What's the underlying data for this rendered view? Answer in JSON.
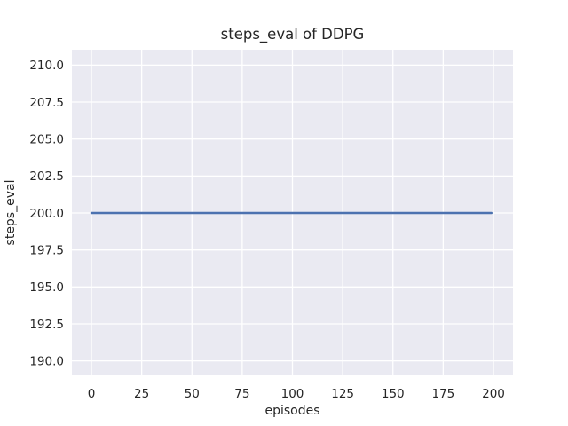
{
  "chart_data": {
    "type": "line",
    "title": "steps_eval of DDPG",
    "xlabel": "episodes",
    "ylabel": "steps_eval",
    "x_tick_values": [
      0,
      25,
      50,
      75,
      100,
      125,
      150,
      175,
      200
    ],
    "x_tick_labels": [
      "0",
      "25",
      "50",
      "75",
      "100",
      "125",
      "150",
      "175",
      "200"
    ],
    "y_tick_values": [
      190.0,
      192.5,
      195.0,
      197.5,
      200.0,
      202.5,
      205.0,
      207.5,
      210.0
    ],
    "y_tick_labels": [
      "190.0",
      "192.5",
      "195.0",
      "197.5",
      "200.0",
      "202.5",
      "205.0",
      "207.5",
      "210.0"
    ],
    "xlim": [
      -9.7,
      209.7
    ],
    "ylim": [
      188.95,
      211.05
    ],
    "grid": true,
    "legend": false,
    "series": [
      {
        "name": "steps_eval",
        "x": [
          0,
          199
        ],
        "y": [
          200,
          200
        ],
        "constant_value": 200,
        "color": "#4C72B0"
      }
    ],
    "colors": {
      "plot_background": "#EAEAF2",
      "grid_line": "#FFFFFF",
      "text": "#262626",
      "figure_background": "#FFFFFF"
    }
  }
}
